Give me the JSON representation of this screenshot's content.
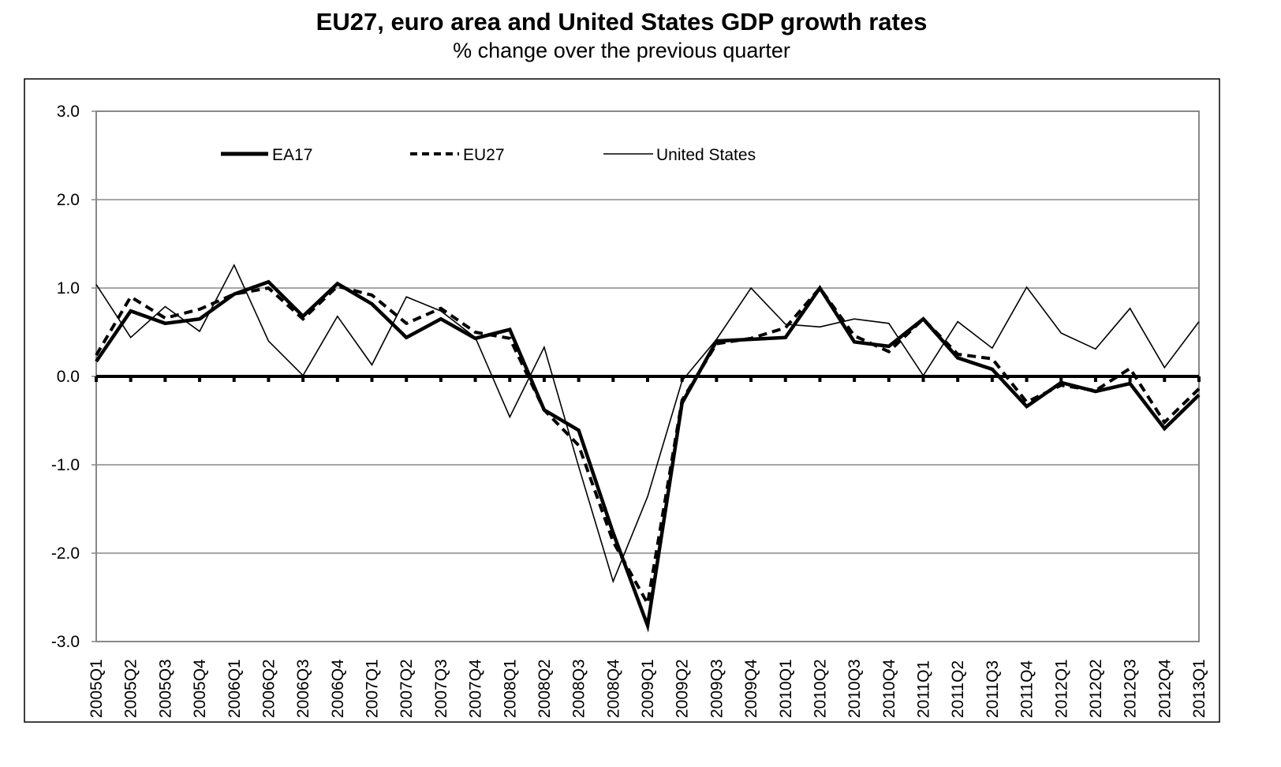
{
  "chart_data": {
    "type": "line",
    "title": "EU27, euro area and United States GDP growth rates",
    "subtitle": "% change over the previous quarter",
    "xlabel": "",
    "ylabel": "",
    "ylim": [
      -3.0,
      3.0
    ],
    "yticks": [
      3.0,
      2.0,
      1.0,
      0.0,
      -1.0,
      -2.0,
      -3.0
    ],
    "ytick_labels": [
      "3.0",
      "2.0",
      "1.0",
      "0.0",
      "-1.0",
      "-2.0",
      "-3.0"
    ],
    "grid": true,
    "legend_position": "top-inside",
    "categories": [
      "2005Q1",
      "2005Q2",
      "2005Q3",
      "2005Q4",
      "2006Q1",
      "2006Q2",
      "2006Q3",
      "2006Q4",
      "2007Q1",
      "2007Q2",
      "2007Q3",
      "2007Q4",
      "2008Q1",
      "2008Q2",
      "2008Q3",
      "2008Q4",
      "2009Q1",
      "2009Q2",
      "2009Q3",
      "2009Q4",
      "2010Q1",
      "2010Q2",
      "2010Q3",
      "2010Q4",
      "2011Q1",
      "2011Q2",
      "2011Q3",
      "2011Q4",
      "2012Q1",
      "2012Q2",
      "2012Q3",
      "2012Q4",
      "2013Q1"
    ],
    "series": [
      {
        "name": "EA17",
        "style": "thick-solid",
        "color": "#000000",
        "values": [
          0.17,
          0.74,
          0.6,
          0.65,
          0.93,
          1.07,
          0.68,
          1.05,
          0.82,
          0.44,
          0.65,
          0.43,
          0.53,
          -0.38,
          -0.61,
          -1.77,
          -2.82,
          -0.3,
          0.4,
          0.42,
          0.44,
          1.0,
          0.39,
          0.34,
          0.65,
          0.21,
          0.08,
          -0.34,
          -0.07,
          -0.17,
          -0.08,
          -0.59,
          -0.21
        ]
      },
      {
        "name": "EU27",
        "style": "thick-dashed",
        "color": "#000000",
        "values": [
          0.24,
          0.9,
          0.66,
          0.76,
          0.93,
          1.0,
          0.65,
          1.02,
          0.92,
          0.6,
          0.77,
          0.5,
          0.43,
          -0.38,
          -0.78,
          -1.87,
          -2.57,
          -0.27,
          0.37,
          0.43,
          0.55,
          1.0,
          0.46,
          0.28,
          0.65,
          0.25,
          0.2,
          -0.29,
          -0.1,
          -0.16,
          0.09,
          -0.52,
          -0.14
        ]
      },
      {
        "name": "United States",
        "style": "thin-solid",
        "color": "#000000",
        "values": [
          1.04,
          0.44,
          0.79,
          0.51,
          1.26,
          0.4,
          0.01,
          0.68,
          0.13,
          0.9,
          0.74,
          0.44,
          -0.46,
          0.33,
          -1.02,
          -2.32,
          -1.36,
          -0.05,
          0.42,
          1.0,
          0.59,
          0.56,
          0.65,
          0.6,
          0.01,
          0.62,
          0.32,
          1.01,
          0.49,
          0.31,
          0.77,
          0.1,
          0.62
        ]
      }
    ]
  }
}
